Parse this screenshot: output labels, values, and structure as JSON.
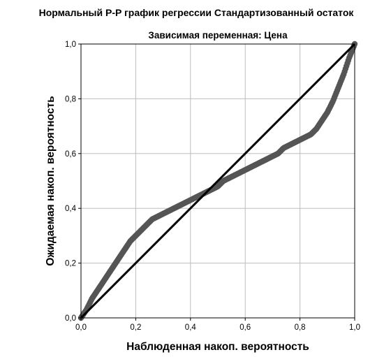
{
  "chart_data": {
    "type": "scatter",
    "title": "Нормальный P-P график регрессии Стандартизованный остаток",
    "subtitle": "Зависимая переменная: Цена",
    "xlabel": "Наблюденная накоп. вероятность",
    "ylabel": "Ожидаемая накоп. вероятность",
    "xlim": [
      0,
      1
    ],
    "ylim": [
      0,
      1
    ],
    "x_ticks": [
      0.0,
      0.2,
      0.4,
      0.6,
      0.8,
      1.0
    ],
    "y_ticks": [
      0.0,
      0.2,
      0.4,
      0.6,
      0.8,
      1.0
    ],
    "x_tick_labels": [
      "0,0",
      "0,2",
      "0,4",
      "0,6",
      "0,8",
      "1,0"
    ],
    "y_tick_labels": [
      "0,0",
      "0,2",
      "0,4",
      "0,6",
      "0,8",
      "1,0"
    ],
    "grid": true,
    "reference_line": {
      "from": [
        0,
        0
      ],
      "to": [
        1,
        1
      ]
    },
    "series": [
      {
        "x": [
          0.0,
          0.02,
          0.04,
          0.06,
          0.08,
          0.1,
          0.12,
          0.14,
          0.16,
          0.18,
          0.2,
          0.22,
          0.24,
          0.26,
          0.28,
          0.3,
          0.32,
          0.34,
          0.36,
          0.38,
          0.4,
          0.42,
          0.44,
          0.46,
          0.48,
          0.5,
          0.52,
          0.54,
          0.56,
          0.58,
          0.6,
          0.62,
          0.64,
          0.66,
          0.68,
          0.7,
          0.72,
          0.74,
          0.76,
          0.78,
          0.8,
          0.82,
          0.84,
          0.86,
          0.88,
          0.9,
          0.92,
          0.94,
          0.96,
          0.98,
          1.0
        ],
        "y": [
          0.0,
          0.03,
          0.07,
          0.1,
          0.13,
          0.16,
          0.19,
          0.22,
          0.25,
          0.28,
          0.3,
          0.32,
          0.34,
          0.36,
          0.37,
          0.38,
          0.39,
          0.4,
          0.41,
          0.42,
          0.43,
          0.44,
          0.45,
          0.46,
          0.47,
          0.48,
          0.5,
          0.51,
          0.52,
          0.53,
          0.54,
          0.55,
          0.56,
          0.57,
          0.58,
          0.59,
          0.6,
          0.62,
          0.63,
          0.64,
          0.65,
          0.66,
          0.67,
          0.69,
          0.72,
          0.75,
          0.79,
          0.84,
          0.89,
          0.95,
          1.0
        ]
      }
    ],
    "colors": {
      "points": "#555555",
      "reference_line": "#000000",
      "grid": "#bdbdbd",
      "frame": "#000000"
    }
  }
}
